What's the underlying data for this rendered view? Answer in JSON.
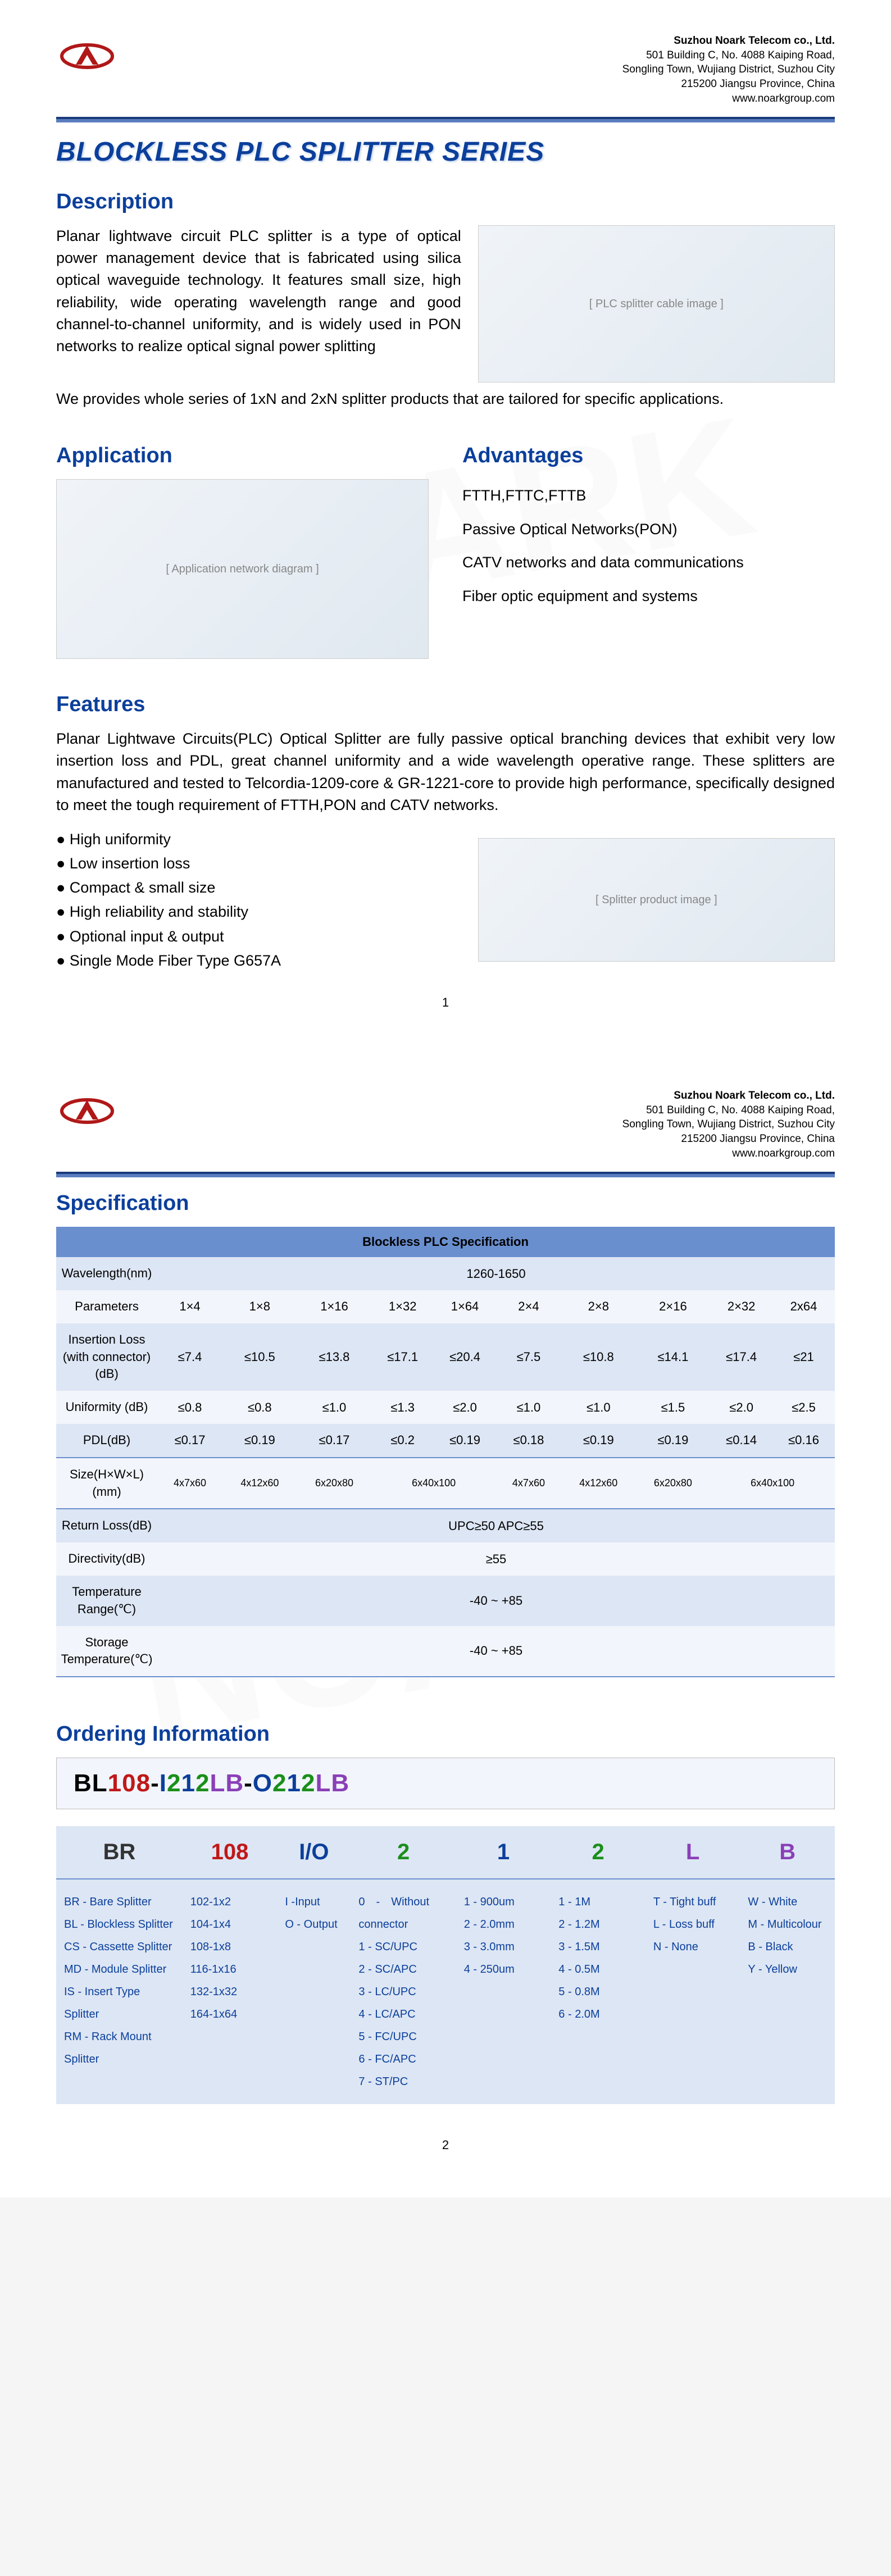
{
  "company": {
    "name": "Suzhou Noark Telecom co., Ltd.",
    "addr1": "501 Building C, No. 4088 Kaiping Road,",
    "addr2": "Songling Town, Wujiang District, Suzhou City",
    "addr3": "215200 Jiangsu Province, China",
    "website": "www.noarkgroup.com"
  },
  "colors": {
    "blue": "#0b3f9b",
    "tableHeader": "#6a8fcf",
    "rowOdd": "#dde6f4",
    "rowEven": "#f2f5fb",
    "red": "#c01818",
    "green": "#1a8f1a",
    "purple": "#8a3fb8"
  },
  "title": "BLOCKLESS PLC SPLITTER SERIES",
  "sections": {
    "description": {
      "heading": "Description",
      "text1": "Planar lightwave circuit PLC splitter is a type of optical power management device that is fabricated using silica optical waveguide technology. It features small size, high reliability, wide operating wavelength range and good channel-to-channel uniformity, and is widely used in PON networks to realize optical signal power splitting",
      "text2": "We provides whole series of 1xN and 2xN splitter products that are tailored for specific applications."
    },
    "application": {
      "heading": "Application"
    },
    "advantages": {
      "heading": "Advantages",
      "items": [
        "FTTH,FTTC,FTTB",
        "Passive Optical Networks(PON)",
        "CATV networks and data communications",
        "Fiber optic equipment and systems"
      ]
    },
    "features": {
      "heading": "Features",
      "intro": "Planar Lightwave Circuits(PLC) Optical Splitter are fully passive optical branching devices that exhibit very low insertion loss and PDL, great channel uniformity and a wide wavelength operative range. These splitters are manufactured and tested to Telcordia-1209-core & GR-1221-core to provide high performance, specifically designed to meet the tough requirement of FTTH,PON and CATV networks.",
      "bullets": [
        "High uniformity",
        "Low insertion loss",
        "Compact & small size",
        "High reliability and stability",
        "Optional input & output",
        "Single Mode Fiber Type G657A"
      ]
    },
    "specification": {
      "heading": "Specification",
      "tableTitle": "Blockless PLC Specification",
      "columns": [
        "1×4",
        "1×8",
        "1×16",
        "1×32",
        "1×64",
        "2×4",
        "2×8",
        "2×16",
        "2×32",
        "2x64"
      ],
      "rows": [
        {
          "label": "Wavelength(nm)",
          "span": "1260-1650"
        },
        {
          "label": "Parameters",
          "cells": [
            "1×4",
            "1×8",
            "1×16",
            "1×32",
            "1×64",
            "2×4",
            "2×8",
            "2×16",
            "2×32",
            "2x64"
          ]
        },
        {
          "label": "Insertion Loss (with connector) (dB)",
          "cells": [
            "≤7.4",
            "≤10.5",
            "≤13.8",
            "≤17.1",
            "≤20.4",
            "≤7.5",
            "≤10.8",
            "≤14.1",
            "≤17.4",
            "≤21"
          ]
        },
        {
          "label": "Uniformity (dB)",
          "cells": [
            "≤0.8",
            "≤0.8",
            "≤1.0",
            "≤1.3",
            "≤2.0",
            "≤1.0",
            "≤1.0",
            "≤1.5",
            "≤2.0",
            "≤2.5"
          ]
        },
        {
          "label": "PDL(dB)",
          "cells": [
            "≤0.17",
            "≤0.19",
            "≤0.17",
            "≤0.2",
            "≤0.19",
            "≤0.18",
            "≤0.19",
            "≤0.19",
            "≤0.14",
            "≤0.16"
          ]
        },
        {
          "label": "Size(H×W×L)(mm)",
          "cells": [
            "4x7x60",
            "4x12x60",
            "6x20x80",
            "6x40x100",
            "4x7x60",
            "4x12x60",
            "6x20x80",
            "6x40x100"
          ],
          "small": true
        },
        {
          "label": "Return Loss(dB)",
          "span": "UPC≥50   APC≥55"
        },
        {
          "label": "Directivity(dB)",
          "span": "≥55"
        },
        {
          "label": "Temperature Range(℃)",
          "span": "-40 ~ +85"
        },
        {
          "label": "Storage Temperature(℃)",
          "span": "-40 ~ +85"
        }
      ]
    },
    "ordering": {
      "heading": "Ordering Information",
      "code_parts": [
        {
          "t": "BL",
          "c": "k"
        },
        {
          "t": "1",
          "c": "r"
        },
        {
          "t": "08",
          "c": "r"
        },
        {
          "t": "-",
          "c": "k"
        },
        {
          "t": "I",
          "c": "b"
        },
        {
          "t": "2",
          "c": "g"
        },
        {
          "t": "1",
          "c": "b"
        },
        {
          "t": "2",
          "c": "g"
        },
        {
          "t": "L",
          "c": "p"
        },
        {
          "t": "B",
          "c": "p"
        },
        {
          "t": "-",
          "c": "k"
        },
        {
          "t": "O",
          "c": "b"
        },
        {
          "t": "2",
          "c": "g"
        },
        {
          "t": "1",
          "c": "b"
        },
        {
          "t": "2",
          "c": "g"
        },
        {
          "t": "L",
          "c": "p"
        },
        {
          "t": "B",
          "c": "p"
        }
      ],
      "headers": [
        {
          "t": "BR",
          "c": "k"
        },
        {
          "t": "108",
          "c": "r"
        },
        {
          "t": "I/O",
          "c": "b"
        },
        {
          "t": "2",
          "c": "g"
        },
        {
          "t": "1",
          "c": "b"
        },
        {
          "t": "2",
          "c": "g"
        },
        {
          "t": "L",
          "c": "p"
        },
        {
          "t": "B",
          "c": "p"
        }
      ],
      "cells": [
        [
          "BR - Bare Splitter",
          "BL - Blockless Splitter",
          "CS - Cassette Splitter",
          "MD - Module Splitter",
          "IS - Insert Type Splitter",
          "RM - Rack Mount Splitter"
        ],
        [
          "102-1x2",
          "104-1x4",
          "108-1x8",
          "116-1x16",
          "132-1x32",
          "164-1x64"
        ],
        [
          "I -Input",
          "O - Output"
        ],
        [
          "0　-　Without connector",
          "1 - SC/UPC",
          "2 - SC/APC",
          "3 - LC/UPC",
          "4 - LC/APC",
          "5 - FC/UPC",
          "6 - FC/APC",
          "7 - ST/PC"
        ],
        [
          "1 - 900um",
          "2 - 2.0mm",
          "3 - 3.0mm",
          "4 - 250um"
        ],
        [
          "1 - 1M",
          "2 - 1.2M",
          "3 - 1.5M",
          "4 - 0.5M",
          "5 - 0.8M",
          "6 - 2.0M"
        ],
        [
          "T - Tight buff",
          "L - Loss buff",
          "N - None"
        ],
        [
          "W - White",
          "M - Multicolour",
          "B - Black",
          "Y - Yellow"
        ]
      ]
    }
  },
  "pageNumbers": [
    "1",
    "2"
  ],
  "imagePlaceholders": {
    "product1": "[ PLC splitter cable image ]",
    "application": "[ Application network diagram ]",
    "product2": "[ Splitter product image ]"
  },
  "watermark": "NOARK"
}
